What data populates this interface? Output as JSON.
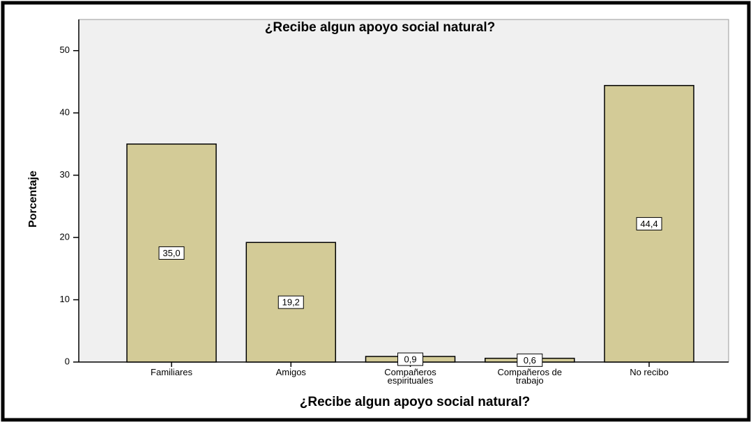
{
  "chart_data": {
    "type": "bar",
    "title": "¿Recibe algun apoyo social natural?",
    "x_label": "¿Recibe algun apoyo social natural?",
    "y_label": "Porcentaje",
    "categories": [
      "Familiares",
      "Amigos",
      "Compañeros espirituales",
      "Compañeros de trabajo",
      "No recibo"
    ],
    "values": [
      35.0,
      19.2,
      0.9,
      0.6,
      44.4
    ],
    "value_labels": [
      "35,0",
      "19,2",
      "0,9",
      "0,6",
      "44,4"
    ],
    "color": "#d3cb97",
    "ylim": [
      0,
      55
    ],
    "yticks": [
      0,
      10,
      20,
      30,
      40,
      50
    ],
    "grid": false
  }
}
